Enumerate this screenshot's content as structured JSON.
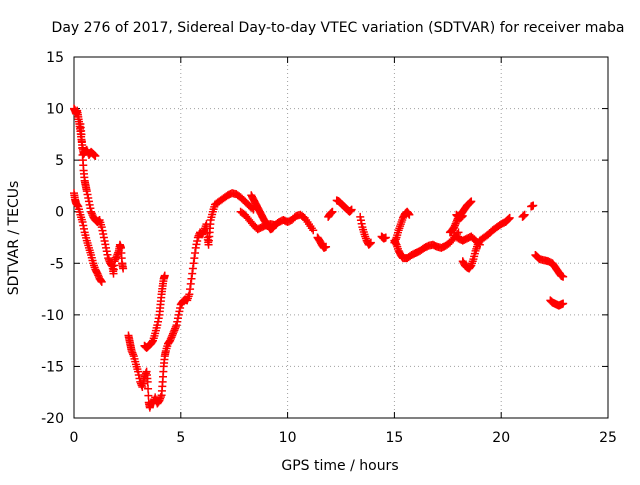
{
  "chart_data": {
    "type": "scatter",
    "title": "Day 276 of 2017, Sidereal Day-to-day VTEC variation (SDTVAR) for receiver maba",
    "xlabel": "GPS time / hours",
    "ylabel": "SDTVAR / TECUs",
    "xlim": [
      0,
      25
    ],
    "ylim": [
      -20,
      15
    ],
    "xticks": [
      0,
      5,
      10,
      15,
      20,
      25
    ],
    "yticks": [
      -20,
      -15,
      -10,
      -5,
      0,
      5,
      10,
      15
    ],
    "grid": true,
    "marker": "+",
    "color": "#ff0000",
    "series": [
      {
        "values": [
          [
            0.0,
            10.0
          ],
          [
            0.05,
            9.8
          ],
          [
            0.1,
            9.5
          ],
          [
            0.15,
            9.8
          ],
          [
            0.2,
            9.2
          ],
          [
            0.25,
            8.5
          ],
          [
            0.3,
            7.8
          ],
          [
            0.35,
            7.0
          ],
          [
            0.4,
            6.2
          ],
          [
            0.45,
            5.6
          ],
          [
            0.5,
            5.8
          ],
          [
            0.6,
            6.0
          ],
          [
            0.7,
            5.5
          ],
          [
            0.8,
            5.8
          ],
          [
            0.9,
            5.6
          ],
          [
            1.0,
            5.4
          ]
        ]
      },
      {
        "values": [
          [
            0.0,
            1.8
          ],
          [
            0.05,
            1.2
          ],
          [
            0.1,
            0.8
          ],
          [
            0.2,
            0.5
          ],
          [
            0.3,
            -0.3
          ],
          [
            0.4,
            -1.0
          ],
          [
            0.5,
            -2.0
          ],
          [
            0.6,
            -2.8
          ],
          [
            0.7,
            -3.5
          ],
          [
            0.8,
            -4.2
          ],
          [
            0.9,
            -5.0
          ],
          [
            1.0,
            -5.6
          ],
          [
            1.1,
            -6.0
          ],
          [
            1.2,
            -6.5
          ],
          [
            1.3,
            -6.8
          ]
        ]
      },
      {
        "values": [
          [
            0.3,
            8.5
          ],
          [
            0.35,
            7.5
          ],
          [
            0.4,
            5.5
          ],
          [
            0.45,
            4.0
          ],
          [
            0.5,
            3.0
          ],
          [
            0.55,
            2.5
          ],
          [
            0.6,
            2.0
          ],
          [
            0.7,
            1.0
          ],
          [
            0.8,
            0.0
          ],
          [
            0.9,
            -0.5
          ],
          [
            1.0,
            -0.8
          ],
          [
            1.1,
            -1.0
          ],
          [
            1.2,
            -0.8
          ],
          [
            1.3,
            -1.5
          ],
          [
            1.4,
            -2.5
          ],
          [
            1.5,
            -3.5
          ],
          [
            1.6,
            -4.5
          ],
          [
            1.7,
            -5.0
          ],
          [
            1.8,
            -5.3
          ],
          [
            1.85,
            -6.0
          ],
          [
            1.9,
            -4.8
          ],
          [
            2.0,
            -4.3
          ],
          [
            2.1,
            -3.8
          ],
          [
            2.15,
            -3.2
          ],
          [
            2.2,
            -3.5
          ],
          [
            2.25,
            -5.0
          ],
          [
            2.3,
            -5.5
          ]
        ]
      },
      {
        "values": [
          [
            2.55,
            -12.0
          ],
          [
            2.6,
            -12.5
          ],
          [
            2.65,
            -13.0
          ],
          [
            2.7,
            -13.5
          ],
          [
            2.8,
            -14.0
          ],
          [
            2.9,
            -14.8
          ],
          [
            3.0,
            -15.5
          ],
          [
            3.1,
            -16.5
          ],
          [
            3.2,
            -17.0
          ],
          [
            3.3,
            -16.0
          ],
          [
            3.4,
            -15.5
          ],
          [
            3.45,
            -16.5
          ],
          [
            3.5,
            -18.5
          ],
          [
            3.55,
            -19.0
          ],
          [
            3.6,
            -18.5
          ],
          [
            3.7,
            -18.6
          ],
          [
            3.8,
            -18.0
          ],
          [
            3.9,
            -18.6
          ],
          [
            4.0,
            -18.3
          ],
          [
            4.1,
            -17.8
          ],
          [
            4.15,
            -16.5
          ],
          [
            4.2,
            -15.0
          ],
          [
            4.25,
            -14.0
          ],
          [
            4.3,
            -13.5
          ],
          [
            4.4,
            -12.8
          ],
          [
            4.5,
            -12.5
          ],
          [
            4.6,
            -12.0
          ],
          [
            4.7,
            -11.5
          ],
          [
            4.8,
            -11.0
          ],
          [
            4.9,
            -10.0
          ],
          [
            5.0,
            -9.0
          ],
          [
            5.1,
            -8.7
          ],
          [
            5.2,
            -8.5
          ],
          [
            5.3,
            -8.6
          ],
          [
            5.4,
            -8.0
          ],
          [
            5.5,
            -6.5
          ],
          [
            5.6,
            -5.0
          ],
          [
            5.7,
            -3.5
          ],
          [
            5.8,
            -2.5
          ],
          [
            5.9,
            -2.0
          ],
          [
            6.0,
            -2.2
          ],
          [
            6.1,
            -1.8
          ],
          [
            6.2,
            -1.2
          ],
          [
            6.25,
            -2.5
          ],
          [
            6.3,
            -3.2
          ],
          [
            6.35,
            -2.0
          ],
          [
            6.4,
            -0.8
          ],
          [
            6.5,
            0.0
          ],
          [
            6.6,
            0.7
          ],
          [
            6.8,
            1.0
          ],
          [
            7.0,
            1.3
          ],
          [
            7.2,
            1.6
          ],
          [
            7.4,
            1.8
          ],
          [
            7.6,
            1.7
          ],
          [
            7.8,
            1.4
          ],
          [
            8.0,
            1.0
          ],
          [
            8.2,
            0.6
          ],
          [
            8.4,
            0.2
          ]
        ]
      },
      {
        "values": [
          [
            3.3,
            -13.0
          ],
          [
            3.4,
            -13.2
          ],
          [
            3.5,
            -13.0
          ],
          [
            3.6,
            -12.8
          ],
          [
            3.7,
            -12.5
          ],
          [
            3.8,
            -11.8
          ],
          [
            3.9,
            -11.0
          ],
          [
            4.0,
            -10.0
          ],
          [
            4.05,
            -9.0
          ],
          [
            4.1,
            -8.0
          ],
          [
            4.15,
            -7.2
          ],
          [
            4.2,
            -6.5
          ],
          [
            4.25,
            -6.2
          ]
        ]
      },
      {
        "values": [
          [
            7.8,
            0.0
          ],
          [
            8.0,
            -0.3
          ],
          [
            8.2,
            -0.8
          ],
          [
            8.4,
            -1.3
          ],
          [
            8.6,
            -1.7
          ],
          [
            8.8,
            -1.5
          ],
          [
            9.0,
            -1.3
          ],
          [
            9.2,
            -1.2
          ],
          [
            9.4,
            -1.3
          ],
          [
            9.6,
            -1.0
          ],
          [
            9.8,
            -0.8
          ],
          [
            10.0,
            -1.0
          ],
          [
            10.2,
            -0.8
          ],
          [
            10.4,
            -0.4
          ],
          [
            10.6,
            -0.3
          ],
          [
            10.8,
            -0.6
          ],
          [
            11.0,
            -1.2
          ],
          [
            11.2,
            -1.8
          ]
        ]
      },
      {
        "values": [
          [
            8.3,
            1.6
          ],
          [
            8.4,
            1.2
          ],
          [
            8.5,
            0.8
          ],
          [
            8.6,
            0.4
          ],
          [
            8.7,
            0.0
          ],
          [
            8.8,
            -0.4
          ],
          [
            8.9,
            -0.8
          ],
          [
            9.0,
            -1.1
          ],
          [
            9.1,
            -1.4
          ],
          [
            9.2,
            -1.7
          ],
          [
            9.3,
            -1.6
          ],
          [
            9.4,
            -1.3
          ]
        ]
      },
      {
        "values": [
          [
            11.4,
            -2.5
          ],
          [
            11.5,
            -2.8
          ],
          [
            11.6,
            -3.2
          ],
          [
            11.7,
            -3.5
          ],
          [
            11.8,
            -3.4
          ]
        ]
      },
      {
        "values": [
          [
            11.9,
            -0.5
          ],
          [
            12.0,
            -0.2
          ],
          [
            12.1,
            0.0
          ]
        ]
      },
      {
        "values": [
          [
            12.3,
            1.1
          ],
          [
            12.4,
            1.0
          ],
          [
            12.5,
            0.8
          ],
          [
            12.6,
            0.6
          ],
          [
            12.7,
            0.4
          ],
          [
            12.8,
            0.2
          ],
          [
            12.9,
            0.0
          ],
          [
            13.0,
            0.2
          ]
        ]
      },
      {
        "values": [
          [
            13.4,
            -0.5
          ],
          [
            13.5,
            -1.5
          ],
          [
            13.6,
            -2.2
          ],
          [
            13.7,
            -2.8
          ],
          [
            13.8,
            -3.2
          ],
          [
            13.9,
            -3.0
          ]
        ]
      },
      {
        "values": [
          [
            14.4,
            -2.4
          ],
          [
            14.5,
            -2.6
          ],
          [
            14.6,
            -2.5
          ]
        ]
      },
      {
        "values": [
          [
            15.0,
            -3.0
          ],
          [
            15.1,
            -2.5
          ],
          [
            15.2,
            -1.8
          ],
          [
            15.3,
            -1.2
          ],
          [
            15.4,
            -0.6
          ],
          [
            15.5,
            -0.2
          ],
          [
            15.6,
            0.0
          ],
          [
            15.7,
            -0.3
          ]
        ]
      },
      {
        "values": [
          [
            15.0,
            -2.8
          ],
          [
            15.1,
            -3.2
          ],
          [
            15.2,
            -3.8
          ],
          [
            15.3,
            -4.2
          ],
          [
            15.4,
            -4.5
          ],
          [
            15.6,
            -4.5
          ],
          [
            15.8,
            -4.2
          ],
          [
            16.0,
            -4.0
          ],
          [
            16.2,
            -3.8
          ],
          [
            16.4,
            -3.5
          ],
          [
            16.6,
            -3.3
          ],
          [
            16.8,
            -3.2
          ],
          [
            17.0,
            -3.4
          ],
          [
            17.2,
            -3.5
          ],
          [
            17.4,
            -3.3
          ],
          [
            17.6,
            -3.0
          ],
          [
            17.8,
            -2.5
          ],
          [
            18.0,
            -2.0
          ]
        ]
      },
      {
        "values": [
          [
            17.6,
            -2.0
          ],
          [
            17.7,
            -1.8
          ],
          [
            17.8,
            -1.5
          ],
          [
            17.9,
            -1.0
          ],
          [
            18.0,
            -0.5
          ],
          [
            18.1,
            -0.3
          ],
          [
            18.2,
            0.0
          ],
          [
            18.3,
            0.3
          ],
          [
            18.4,
            0.6
          ],
          [
            18.5,
            0.8
          ],
          [
            18.6,
            1.0
          ]
        ]
      },
      {
        "values": [
          [
            17.9,
            -0.3
          ],
          [
            18.0,
            -0.5
          ],
          [
            18.1,
            -0.6
          ],
          [
            18.2,
            -0.4
          ]
        ]
      },
      {
        "values": [
          [
            18.2,
            -4.8
          ],
          [
            18.3,
            -5.2
          ],
          [
            18.4,
            -5.4
          ],
          [
            18.5,
            -5.5
          ],
          [
            18.6,
            -5.2
          ],
          [
            18.7,
            -4.6
          ],
          [
            18.8,
            -3.8
          ],
          [
            18.9,
            -3.2
          ],
          [
            19.0,
            -2.8
          ],
          [
            19.2,
            -2.5
          ],
          [
            19.4,
            -2.2
          ],
          [
            19.6,
            -1.8
          ],
          [
            19.8,
            -1.5
          ],
          [
            20.0,
            -1.2
          ],
          [
            20.2,
            -1.0
          ],
          [
            20.3,
            -0.8
          ],
          [
            20.4,
            -0.6
          ]
        ]
      },
      {
        "values": [
          [
            17.8,
            -2.3
          ],
          [
            18.0,
            -2.6
          ],
          [
            18.2,
            -2.8
          ],
          [
            18.4,
            -2.6
          ],
          [
            18.6,
            -2.4
          ],
          [
            18.8,
            -2.8
          ],
          [
            19.0,
            -3.2
          ]
        ]
      },
      {
        "values": [
          [
            21.0,
            -0.5
          ],
          [
            21.1,
            -0.3
          ]
        ]
      },
      {
        "values": [
          [
            21.4,
            0.5
          ],
          [
            21.5,
            0.6
          ]
        ]
      },
      {
        "values": [
          [
            21.6,
            -4.2
          ],
          [
            21.7,
            -4.4
          ],
          [
            21.8,
            -4.6
          ],
          [
            22.0,
            -4.7
          ],
          [
            22.2,
            -4.8
          ],
          [
            22.4,
            -5.0
          ],
          [
            22.5,
            -5.3
          ],
          [
            22.6,
            -5.6
          ],
          [
            22.7,
            -5.9
          ],
          [
            22.8,
            -6.2
          ],
          [
            22.9,
            -6.3
          ]
        ]
      },
      {
        "values": [
          [
            22.3,
            -8.6
          ],
          [
            22.4,
            -8.8
          ],
          [
            22.5,
            -8.9
          ],
          [
            22.6,
            -9.0
          ],
          [
            22.7,
            -9.1
          ],
          [
            22.8,
            -9.0
          ],
          [
            22.9,
            -8.9
          ]
        ]
      }
    ]
  }
}
